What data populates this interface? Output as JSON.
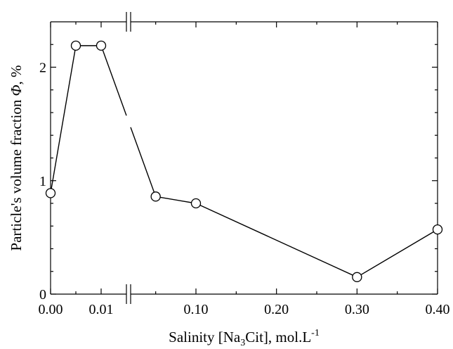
{
  "chart_data": {
    "type": "line",
    "x_label": {
      "pre": "Salinity [Na",
      "sub": "3",
      "mid": "Cit], mol.L",
      "sup": "-1"
    },
    "y_label": {
      "pre": "Particle's volume fraction ",
      "symbol": "Φ",
      "post": ", %"
    },
    "x_axis_break": true,
    "x_segments": [
      {
        "range": [
          0.0,
          0.012
        ],
        "ticks": [
          0.0,
          0.01
        ],
        "tick_labels": [
          "0.00",
          "0.01"
        ]
      },
      {
        "range": [
          0.05,
          0.4
        ],
        "ticks": [
          0.1,
          0.2,
          0.3,
          0.4
        ],
        "tick_labels": [
          "0.10",
          "0.20",
          "0.30",
          "0.40"
        ]
      }
    ],
    "ylim": [
      0,
      2.4
    ],
    "y_ticks": [
      0,
      1,
      2
    ],
    "y_tick_labels": [
      "0",
      "1",
      "2"
    ],
    "grid": false,
    "series": [
      {
        "marker": "open-circle",
        "line_color": "#000000",
        "x": [
          0.0,
          0.005,
          0.01,
          0.05,
          0.1,
          0.3,
          0.4
        ],
        "y": [
          0.89,
          2.19,
          2.19,
          0.86,
          0.8,
          0.15,
          0.57
        ]
      }
    ]
  }
}
